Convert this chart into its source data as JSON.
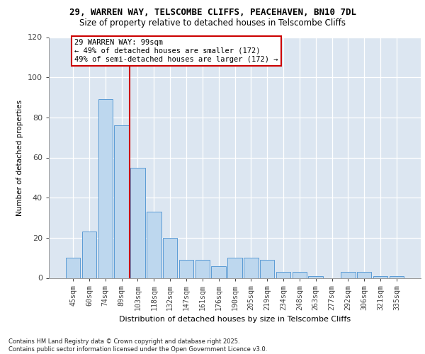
{
  "title1": "29, WARREN WAY, TELSCOMBE CLIFFS, PEACEHAVEN, BN10 7DL",
  "title2": "Size of property relative to detached houses in Telscombe Cliffs",
  "xlabel": "Distribution of detached houses by size in Telscombe Cliffs",
  "ylabel": "Number of detached properties",
  "categories": [
    "45sqm",
    "60sqm",
    "74sqm",
    "89sqm",
    "103sqm",
    "118sqm",
    "132sqm",
    "147sqm",
    "161sqm",
    "176sqm",
    "190sqm",
    "205sqm",
    "219sqm",
    "234sqm",
    "248sqm",
    "263sqm",
    "277sqm",
    "292sqm",
    "306sqm",
    "321sqm",
    "335sqm"
  ],
  "values": [
    10,
    23,
    89,
    76,
    55,
    33,
    20,
    9,
    9,
    6,
    10,
    10,
    9,
    3,
    3,
    1,
    0,
    3,
    3,
    1,
    1
  ],
  "bar_color": "#bdd7ee",
  "bar_edge_color": "#5b9bd5",
  "vline_color": "#cc0000",
  "annotation_line1": "29 WARREN WAY: 99sqm",
  "annotation_line2": "← 49% of detached houses are smaller (172)",
  "annotation_line3": "49% of semi-detached houses are larger (172) →",
  "ylim": [
    0,
    120
  ],
  "yticks": [
    0,
    20,
    40,
    60,
    80,
    100,
    120
  ],
  "footer1": "Contains HM Land Registry data © Crown copyright and database right 2025.",
  "footer2": "Contains public sector information licensed under the Open Government Licence v3.0.",
  "bg_color": "#dce6f1"
}
